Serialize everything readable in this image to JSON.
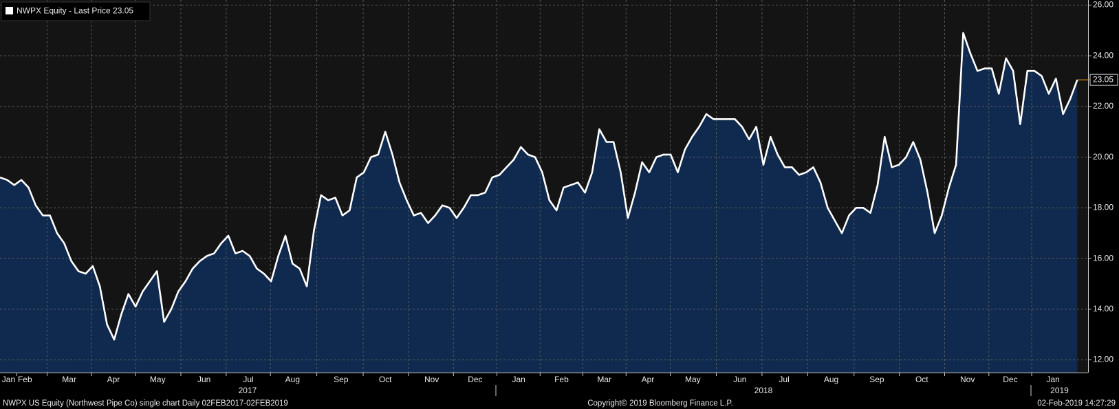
{
  "chart_data": {
    "type": "area",
    "series": [
      {
        "name": "NWPX Equity - Last Price 23.05",
        "color": "#ffffff",
        "fill": "#0f2a4e",
        "values": [
          19.2,
          19.1,
          18.9,
          19.1,
          18.8,
          18.1,
          17.7,
          17.7,
          17.0,
          16.6,
          15.9,
          15.5,
          15.4,
          15.7,
          14.9,
          13.4,
          12.8,
          13.8,
          14.6,
          14.1,
          14.7,
          15.1,
          15.5,
          13.5,
          14.0,
          14.7,
          15.1,
          15.6,
          15.9,
          16.1,
          16.2,
          16.6,
          16.9,
          16.2,
          16.3,
          16.1,
          15.6,
          15.4,
          15.1,
          16.1,
          16.9,
          15.8,
          15.6,
          14.9,
          17.1,
          18.5,
          18.3,
          18.4,
          17.7,
          17.9,
          19.2,
          19.4,
          20.0,
          20.1,
          21.0,
          20.1,
          19.0,
          18.3,
          17.7,
          17.8,
          17.4,
          17.7,
          18.1,
          18.0,
          17.6,
          18.0,
          18.5,
          18.5,
          18.6,
          19.2,
          19.3,
          19.6,
          19.9,
          20.4,
          20.1,
          20.0,
          19.4,
          18.3,
          17.9,
          18.8,
          18.9,
          19.0,
          18.6,
          19.4,
          21.1,
          20.6,
          20.6,
          19.4,
          17.6,
          18.6,
          19.8,
          19.4,
          20.0,
          20.1,
          20.1,
          19.4,
          20.3,
          20.8,
          21.2,
          21.7,
          21.5,
          21.5,
          21.5,
          21.5,
          21.2,
          20.7,
          21.2,
          19.7,
          20.8,
          20.1,
          19.6,
          19.6,
          19.3,
          19.4,
          19.6,
          19.0,
          18.0,
          17.5,
          17.0,
          17.7,
          18.0,
          18.0,
          17.8,
          18.9,
          20.8,
          19.6,
          19.7,
          20.0,
          20.6,
          19.9,
          18.6,
          17.0,
          17.7,
          18.8,
          19.7,
          24.9,
          24.1,
          23.4,
          23.5,
          23.5,
          22.5,
          23.9,
          23.4,
          21.3,
          23.4,
          23.4,
          23.2,
          22.5,
          23.1,
          21.7,
          22.3,
          23.05
        ],
        "last_value_label": "23.05"
      }
    ],
    "ylim": [
      11.5,
      26.2
    ],
    "yticks": [
      {
        "value": 12,
        "label": "12.00"
      },
      {
        "value": 14,
        "label": "14.00"
      },
      {
        "value": 16,
        "label": "16.00"
      },
      {
        "value": 18,
        "label": "18.00"
      },
      {
        "value": 20,
        "label": "20.00"
      },
      {
        "value": 22,
        "label": "22.00"
      },
      {
        "value": 24,
        "label": "24.00"
      },
      {
        "value": 26,
        "label": "26.00"
      }
    ],
    "xlim": [
      0,
      152.5
    ],
    "xticks": [
      {
        "value": 1.2,
        "label": "Jan"
      },
      {
        "value": 3.5,
        "label": "Feb"
      },
      {
        "value": 9.7,
        "label": "Mar"
      },
      {
        "value": 15.9,
        "label": "Apr"
      },
      {
        "value": 22.1,
        "label": "May"
      },
      {
        "value": 28.6,
        "label": "Jun"
      },
      {
        "value": 34.8,
        "label": "Jul"
      },
      {
        "value": 41.0,
        "label": "Aug"
      },
      {
        "value": 47.8,
        "label": "Sep"
      },
      {
        "value": 54.0,
        "label": "Oct"
      },
      {
        "value": 60.5,
        "label": "Nov"
      },
      {
        "value": 66.6,
        "label": "Dec"
      },
      {
        "value": 72.7,
        "label": "Jan"
      },
      {
        "value": 78.7,
        "label": "Feb"
      },
      {
        "value": 84.7,
        "label": "Mar"
      },
      {
        "value": 90.8,
        "label": "Apr"
      },
      {
        "value": 97.1,
        "label": "May"
      },
      {
        "value": 103.7,
        "label": "Jun"
      },
      {
        "value": 109.9,
        "label": "Jul"
      },
      {
        "value": 116.5,
        "label": "Aug"
      },
      {
        "value": 122.9,
        "label": "Sep"
      },
      {
        "value": 129.2,
        "label": "Oct"
      },
      {
        "value": 135.6,
        "label": "Nov"
      },
      {
        "value": 141.6,
        "label": "Dec"
      },
      {
        "value": 147.6,
        "label": "Jan"
      }
    ],
    "year_ticks": [
      {
        "value": 34.7,
        "label": "2017"
      },
      {
        "value": 107.0,
        "label": "2018"
      },
      {
        "value": 148.5,
        "label": "2019"
      }
    ],
    "grid": true,
    "footer_left": "NWPX US Equity (Northwest Pipe Co) single chart  Daily 02FEB2017-02FEB2019",
    "footer_center": "Copyright© 2019 Bloomberg Finance L.P.",
    "footer_right": "02-Feb-2019 14:27:29"
  }
}
